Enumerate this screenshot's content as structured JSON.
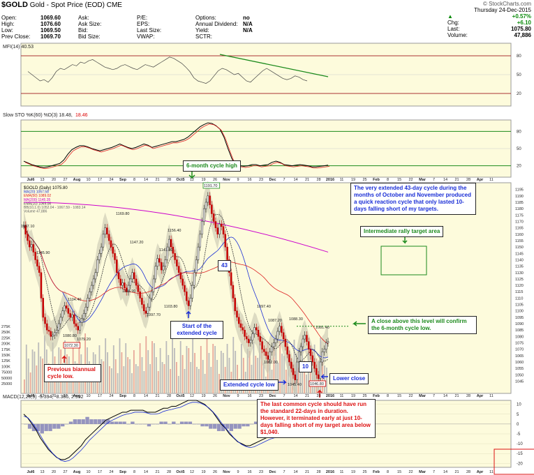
{
  "header": {
    "symbol": "$GOLD",
    "desc": "Gold - Spot Price (EOD)",
    "exchange": "CME",
    "source": "© StockCharts.com",
    "date": "Thursday  24-Dec-2015",
    "quote_left": [
      [
        "Open:",
        "1069.60"
      ],
      [
        "High:",
        "1076.60"
      ],
      [
        "Low:",
        "1069.50"
      ],
      [
        "Prev Close:",
        "1069.70"
      ]
    ],
    "quote_mid": [
      [
        "Ask:",
        ""
      ],
      [
        "Ask Size:",
        ""
      ],
      [
        "Bid:",
        ""
      ],
      [
        "Bid Size:",
        ""
      ]
    ],
    "quote_mid2": [
      [
        "P/E:",
        ""
      ],
      [
        "EPS:",
        ""
      ],
      [
        "Last Size:",
        ""
      ],
      [
        "VWAP:",
        ""
      ]
    ],
    "quote_right": [
      [
        "Options:",
        "no"
      ],
      [
        "Annual Dividend:",
        "N/A"
      ],
      [
        "Yield:",
        "N/A"
      ],
      [
        "SCTR:",
        ""
      ]
    ],
    "pct": "+0.57%",
    "chg_label": "Chg:",
    "chg": "+6.10",
    "last_label": "Last:",
    "last": "1075.80",
    "vol_label": "Volume:",
    "vol": "47,886"
  },
  "panels": {
    "mfi_label": "MFI(14) 40.53",
    "mfi_ticks": [
      "80",
      "50",
      "20"
    ],
    "sto_label": "Slow STO %K(60) %D(3) 18.48,",
    "sto_label2": "18.46",
    "sto_ticks": [
      "80",
      "50",
      "20"
    ],
    "price_legend": [
      "$GOLD (Daily) 1075.80",
      "MA(20) 1067.58",
      "EMA(50) 1089.02",
      "MA(200) 1145.35",
      "EMA(10) 1069.06",
      "BB(10,1.0) 1052.04 - 1067.59 - 1083.14",
      "Volume 47,886"
    ],
    "price_ticks": [
      "1195",
      "1190",
      "1185",
      "1180",
      "1175",
      "1170",
      "1165",
      "1160",
      "1155",
      "1150",
      "1145",
      "1140",
      "1135",
      "1130",
      "1125",
      "1120",
      "1115",
      "1110",
      "1105",
      "1100",
      "1095",
      "1090",
      "1085",
      "1080",
      "1075",
      "1070",
      "1065",
      "1060",
      "1055",
      "1050",
      "1045"
    ],
    "vol_ticks": [
      "275K",
      "250K",
      "225K",
      "200K",
      "175K",
      "150K",
      "125K",
      "100K",
      "75000",
      "50000",
      "25000"
    ],
    "macd_label": "MACD(12,26,9) -5.394, -8.386, 2.992",
    "macd_ticks": [
      "10",
      "5",
      "0",
      "-5",
      "-10",
      "-15",
      "-20"
    ],
    "x_labels": [
      "Jul6",
      "13",
      "20",
      "27",
      "Aug",
      "10",
      "17",
      "24",
      "Sep",
      "8",
      "14",
      "21",
      "28",
      "Oct5",
      "12",
      "19",
      "26",
      "Nov",
      "9",
      "16",
      "23",
      "Dec",
      "7",
      "14",
      "21",
      "28",
      "2016",
      "11",
      "19",
      "25",
      "Feb",
      "8",
      "15",
      "22",
      "Mar",
      "7",
      "14",
      "21",
      "28",
      "Apr",
      "11"
    ]
  },
  "annotations": {
    "cycle_high": "6-month cycle high",
    "extended_note": "The very extended 43-day cycle during the months of October and November produced a quick reaction cycle that only lasted 10-days falling short of my targets.",
    "rally_target": "Intermediate rally target area",
    "close_above": "A close above this level will confirm the 6-month cycle low.",
    "start_ext": "Start of the extended cycle",
    "prev_biannual": "Previous biannual cycle low.",
    "ext_cycle_low": "Extended cycle low",
    "lower_close": "Lower close",
    "last_common": "The last common cycle should have run the standard 22-days in duration. However, it terminated early at just 10-days falling short of my target area below $1,040.",
    "count43": "43",
    "count10": "10"
  },
  "price_labels": [
    {
      "t": "1167.10"
    },
    {
      "t": "1145.90"
    },
    {
      "t": "1104.40"
    },
    {
      "t": "1080.80"
    },
    {
      "t": "1079.20"
    },
    {
      "t": "1072.30",
      "boxed": true
    },
    {
      "t": "1169.80"
    },
    {
      "t": "1147.20"
    },
    {
      "t": "1136.90"
    },
    {
      "t": "1141.80"
    },
    {
      "t": "1097.70"
    },
    {
      "t": "1156.40"
    },
    {
      "t": "1103.80"
    },
    {
      "t": "1191.70",
      "boxed": true
    },
    {
      "t": "1097.40"
    },
    {
      "t": "1087.20"
    },
    {
      "t": "1088.30"
    },
    {
      "t": "1062.00"
    },
    {
      "t": "1045.40"
    },
    {
      "t": "1081.40"
    },
    {
      "t": "1046.80",
      "boxed": true
    }
  ],
  "chart_data": {
    "type": "candlestick",
    "title": "$GOLD Gold - Spot Price (EOD)",
    "ylim": [
      1042,
      1197
    ],
    "key_prices": {
      "jul_high": 1167.1,
      "jul_low": 1072.3,
      "aug_high": 1169.8,
      "sep_low": 1103.8,
      "oct_high": 1191.7,
      "dec_low": 1045.4,
      "dec_retest_low": 1046.8,
      "last": 1075.8,
      "confirm_level": 1088
    },
    "close": [
      1167,
      1160,
      1155,
      1150,
      1152,
      1146,
      1140,
      1135,
      1130,
      1110,
      1095,
      1090,
      1085,
      1084,
      1080,
      1081,
      1083,
      1085,
      1090,
      1095,
      1100,
      1104,
      1102,
      1098,
      1095,
      1097,
      1090,
      1088,
      1085,
      1091,
      1094,
      1098,
      1103,
      1110,
      1115,
      1120,
      1125,
      1130,
      1140,
      1145,
      1150,
      1160,
      1165,
      1160,
      1155,
      1150,
      1145,
      1140,
      1130,
      1125,
      1120,
      1122,
      1118,
      1115,
      1120,
      1125,
      1130,
      1125,
      1120,
      1115,
      1110,
      1105,
      1100,
      1098,
      1103,
      1110,
      1115,
      1125,
      1135,
      1141,
      1138,
      1132,
      1135,
      1140,
      1150,
      1156,
      1150,
      1145,
      1140,
      1135,
      1130,
      1125,
      1120,
      1115,
      1108,
      1104,
      1110,
      1120,
      1130,
      1140,
      1150,
      1160,
      1170,
      1180,
      1185,
      1190,
      1183,
      1176,
      1170,
      1165,
      1160,
      1168,
      1166,
      1160,
      1150,
      1140,
      1130,
      1120,
      1110,
      1100,
      1095,
      1090,
      1087,
      1085,
      1080,
      1078,
      1075,
      1077,
      1082,
      1087,
      1085,
      1080,
      1076,
      1070,
      1068,
      1065,
      1062,
      1068,
      1072,
      1075,
      1078,
      1084,
      1088,
      1083,
      1078,
      1072,
      1066,
      1060,
      1055,
      1050,
      1046,
      1060,
      1068,
      1072,
      1078,
      1081,
      1076,
      1070,
      1065,
      1060,
      1055,
      1050,
      1047,
      1060,
      1068,
      1070,
      1075,
      1076
    ],
    "macd": [
      5,
      3,
      0,
      -3,
      -7,
      -10,
      -13,
      -15,
      -17,
      -18,
      -18,
      -17,
      -15,
      -13,
      -11,
      -8,
      -6,
      -4,
      -2,
      0,
      2,
      3,
      4,
      5,
      6,
      6,
      7,
      7,
      7,
      7,
      6,
      6,
      6,
      7,
      8,
      8,
      9,
      9,
      10,
      11,
      12,
      12,
      12,
      11,
      10,
      8,
      6,
      3,
      0,
      -2,
      -5,
      -7,
      -9,
      -10,
      -11,
      -11,
      -10,
      -9,
      -8,
      -7,
      -6,
      -6,
      -6,
      -5,
      -4,
      -3,
      -2,
      -2,
      -1,
      -1,
      -2,
      -2,
      -3,
      -3,
      -2
    ],
    "mfi": [
      55,
      50,
      45,
      40,
      42,
      38,
      45,
      55,
      60,
      58,
      62,
      66,
      64,
      70,
      68,
      72,
      74,
      70,
      66,
      62,
      60,
      58,
      60,
      64,
      66,
      63,
      60,
      58,
      62,
      66,
      64,
      62,
      66,
      70,
      74,
      78,
      76,
      72,
      68,
      62,
      55,
      45,
      40,
      38,
      36,
      40,
      48,
      56,
      60,
      58,
      54,
      50,
      52,
      46,
      40,
      38,
      44,
      50,
      56,
      60,
      56,
      52,
      48,
      44,
      42,
      44,
      48,
      46,
      42,
      40
    ],
    "sto": [
      28,
      25,
      22,
      20,
      18,
      17,
      18,
      20,
      22,
      24,
      30,
      40,
      48,
      52,
      55,
      55,
      53,
      50,
      48,
      46,
      48,
      50,
      52,
      55,
      58,
      55,
      52,
      50,
      52,
      55,
      58,
      56,
      52,
      54,
      56,
      58,
      60,
      62,
      62,
      64,
      66,
      70,
      76,
      82,
      88,
      92,
      95,
      94,
      90,
      84,
      70,
      50,
      32,
      22,
      20,
      19,
      20,
      22,
      22,
      20,
      21,
      22,
      26,
      28,
      26,
      22,
      21,
      20,
      21,
      22,
      21,
      20,
      18,
      18,
      19,
      20,
      21
    ]
  }
}
